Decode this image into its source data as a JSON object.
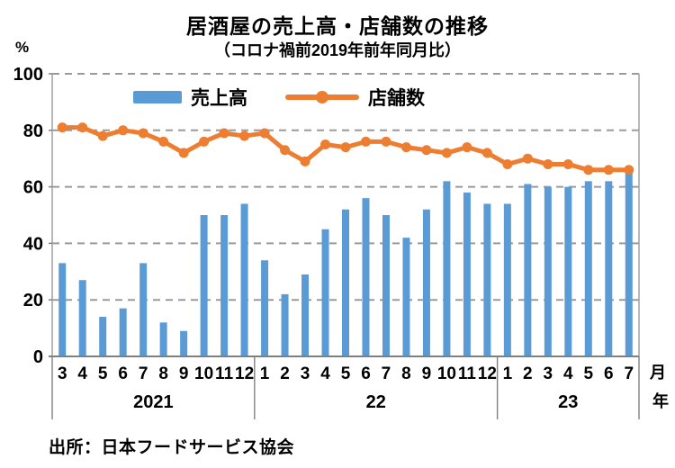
{
  "page": {
    "title": "居酒屋の売上高・店舗数の推移",
    "subtitle": "（コロナ禍前2019年前年同月比）",
    "y_unit_label": "%",
    "x_month_suffix": "月",
    "x_year_suffix": "年",
    "source": "出所：日本フードサービス協会"
  },
  "chart_data": {
    "type": "bar+line",
    "title": "居酒屋の売上高・店舗数の推移",
    "subtitle": "（コロナ禍前2019年前年同月比）",
    "ylabel": "%",
    "ylim": [
      0,
      100
    ],
    "yticks": [
      0,
      20,
      40,
      60,
      80,
      100
    ],
    "grid": "horizontal dashed",
    "legend_position": "top-inside",
    "categories": [
      "3",
      "4",
      "5",
      "6",
      "7",
      "8",
      "9",
      "10",
      "11",
      "12",
      "1",
      "2",
      "3",
      "4",
      "5",
      "6",
      "7",
      "8",
      "9",
      "10",
      "11",
      "12",
      "1",
      "2",
      "3",
      "4",
      "5",
      "6",
      "7"
    ],
    "year_groups": [
      {
        "label": "2021",
        "count": 10
      },
      {
        "label": "22",
        "count": 12
      },
      {
        "label": "23",
        "count": 7
      }
    ],
    "series": [
      {
        "name": "売上高",
        "type": "bar",
        "color": "#5B9BD5",
        "values": [
          33,
          27,
          14,
          17,
          33,
          12,
          9,
          50,
          50,
          54,
          34,
          22,
          29,
          45,
          52,
          56,
          50,
          42,
          52,
          62,
          58,
          54,
          54,
          61,
          60,
          60,
          62,
          62,
          65
        ]
      },
      {
        "name": "店舗数",
        "type": "line",
        "color": "#ED7D31",
        "values": [
          81,
          81,
          78,
          80,
          79,
          76,
          72,
          76,
          79,
          78,
          79,
          73,
          69,
          75,
          74,
          76,
          76,
          74,
          73,
          72,
          74,
          72,
          68,
          70,
          68,
          68,
          66,
          66,
          66
        ]
      }
    ],
    "x_axis_suffix": {
      "month": "月",
      "year": "年"
    },
    "source": "出所：日本フードサービス協会",
    "colors": {
      "bar": "#5B9BD5",
      "line": "#ED7D31",
      "gridline": "#9a9a9a",
      "axis": "#7f7f7f",
      "text": "#000000"
    }
  }
}
